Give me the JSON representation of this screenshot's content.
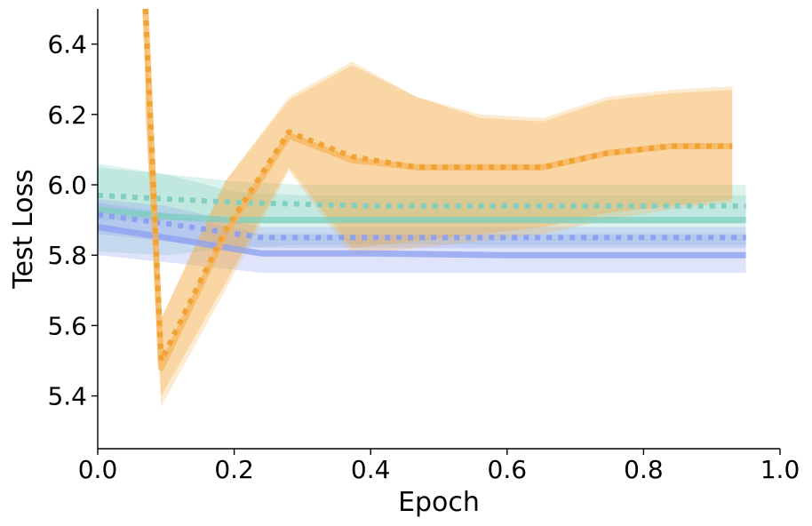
{
  "chart_data": {
    "type": "line",
    "title": "",
    "xlabel": "Epoch",
    "ylabel": "Test Loss",
    "xlim": [
      0.0,
      1.0
    ],
    "ylim": [
      5.25,
      6.5
    ],
    "x_ticks": [
      0.0,
      0.2,
      0.4,
      0.6,
      0.8,
      1.0
    ],
    "x_tick_labels": [
      "0.0",
      "0.2",
      "0.4",
      "0.6",
      "0.8",
      "1.0"
    ],
    "y_ticks": [
      5.4,
      5.6,
      5.8,
      6.0,
      6.2,
      6.4
    ],
    "y_tick_labels": [
      "5.4",
      "5.6",
      "5.8",
      "6.0",
      "6.2",
      "6.4"
    ],
    "grid": false,
    "legend": "none",
    "series": [
      {
        "name": "teal-solid",
        "color": "#7ecfc0",
        "style": "solid",
        "x": [
          0.0,
          0.1,
          0.2,
          0.3,
          0.4,
          0.5,
          0.6,
          0.7,
          0.8,
          0.95
        ],
        "y": [
          5.93,
          5.91,
          5.9,
          5.9,
          5.9,
          5.9,
          5.9,
          5.9,
          5.9,
          5.9
        ],
        "lower": [
          5.81,
          5.8,
          5.82,
          5.83,
          5.83,
          5.83,
          5.83,
          5.83,
          5.83,
          5.83
        ],
        "upper": [
          6.06,
          6.03,
          5.98,
          5.97,
          5.97,
          5.97,
          5.97,
          5.97,
          5.97,
          5.97
        ]
      },
      {
        "name": "teal-dotted",
        "color": "#7ecfc0",
        "style": "dotted",
        "x": [
          0.0,
          0.1,
          0.2,
          0.3,
          0.4,
          0.5,
          0.6,
          0.7,
          0.8,
          0.95
        ],
        "y": [
          5.97,
          5.96,
          5.95,
          5.945,
          5.94,
          5.94,
          5.94,
          5.94,
          5.94,
          5.94
        ],
        "lower": [
          5.9,
          5.9,
          5.89,
          5.89,
          5.89,
          5.89,
          5.89,
          5.89,
          5.89,
          5.89
        ],
        "upper": [
          6.05,
          6.03,
          6.01,
          6.0,
          6.0,
          6.0,
          6.0,
          6.0,
          6.0,
          6.0
        ]
      },
      {
        "name": "blue-solid",
        "color": "#8b9ff0",
        "style": "solid",
        "x": [
          0.0,
          0.1,
          0.24,
          0.4,
          0.6,
          0.8,
          0.95
        ],
        "y": [
          5.88,
          5.85,
          5.805,
          5.805,
          5.8,
          5.8,
          5.8
        ],
        "lower": [
          5.8,
          5.78,
          5.75,
          5.75,
          5.75,
          5.75,
          5.75
        ],
        "upper": [
          5.95,
          5.92,
          5.86,
          5.86,
          5.86,
          5.86,
          5.86
        ]
      },
      {
        "name": "blue-dotted",
        "color": "#8b9ff0",
        "style": "dotted",
        "x": [
          0.0,
          0.1,
          0.24,
          0.4,
          0.6,
          0.8,
          0.95
        ],
        "y": [
          5.915,
          5.89,
          5.85,
          5.85,
          5.85,
          5.85,
          5.85
        ],
        "lower": [
          5.86,
          5.84,
          5.82,
          5.82,
          5.82,
          5.82,
          5.82
        ],
        "upper": [
          5.96,
          5.94,
          5.88,
          5.88,
          5.88,
          5.88,
          5.88
        ]
      },
      {
        "name": "orange-solid",
        "color": "#f5b45a",
        "style": "solid",
        "x": [
          0.07,
          0.093,
          0.187,
          0.28,
          0.373,
          0.467,
          0.56,
          0.653,
          0.747,
          0.84,
          0.93
        ],
        "y": [
          6.5,
          5.48,
          5.86,
          6.14,
          6.07,
          6.05,
          6.05,
          6.05,
          6.09,
          6.11,
          6.11
        ],
        "lower": [
          6.2,
          5.37,
          5.7,
          6.04,
          5.8,
          5.82,
          5.84,
          5.86,
          5.9,
          5.93,
          5.95
        ],
        "upper": [
          6.5,
          5.62,
          6.01,
          6.25,
          6.35,
          6.25,
          6.2,
          6.19,
          6.25,
          6.27,
          6.28
        ]
      },
      {
        "name": "orange-dotted",
        "color": "#f0a030",
        "style": "dotted",
        "x": [
          0.07,
          0.093,
          0.187,
          0.28,
          0.373,
          0.467,
          0.56,
          0.653,
          0.747,
          0.84,
          0.93
        ],
        "y": [
          6.5,
          5.5,
          5.87,
          6.15,
          6.08,
          6.05,
          6.05,
          6.05,
          6.09,
          6.11,
          6.11
        ],
        "lower": [
          6.2,
          5.4,
          5.72,
          6.05,
          5.82,
          5.84,
          5.86,
          5.88,
          5.92,
          5.94,
          5.96
        ],
        "upper": [
          6.5,
          5.62,
          6.01,
          6.24,
          6.34,
          6.25,
          6.19,
          6.18,
          6.24,
          6.26,
          6.27
        ]
      }
    ]
  }
}
